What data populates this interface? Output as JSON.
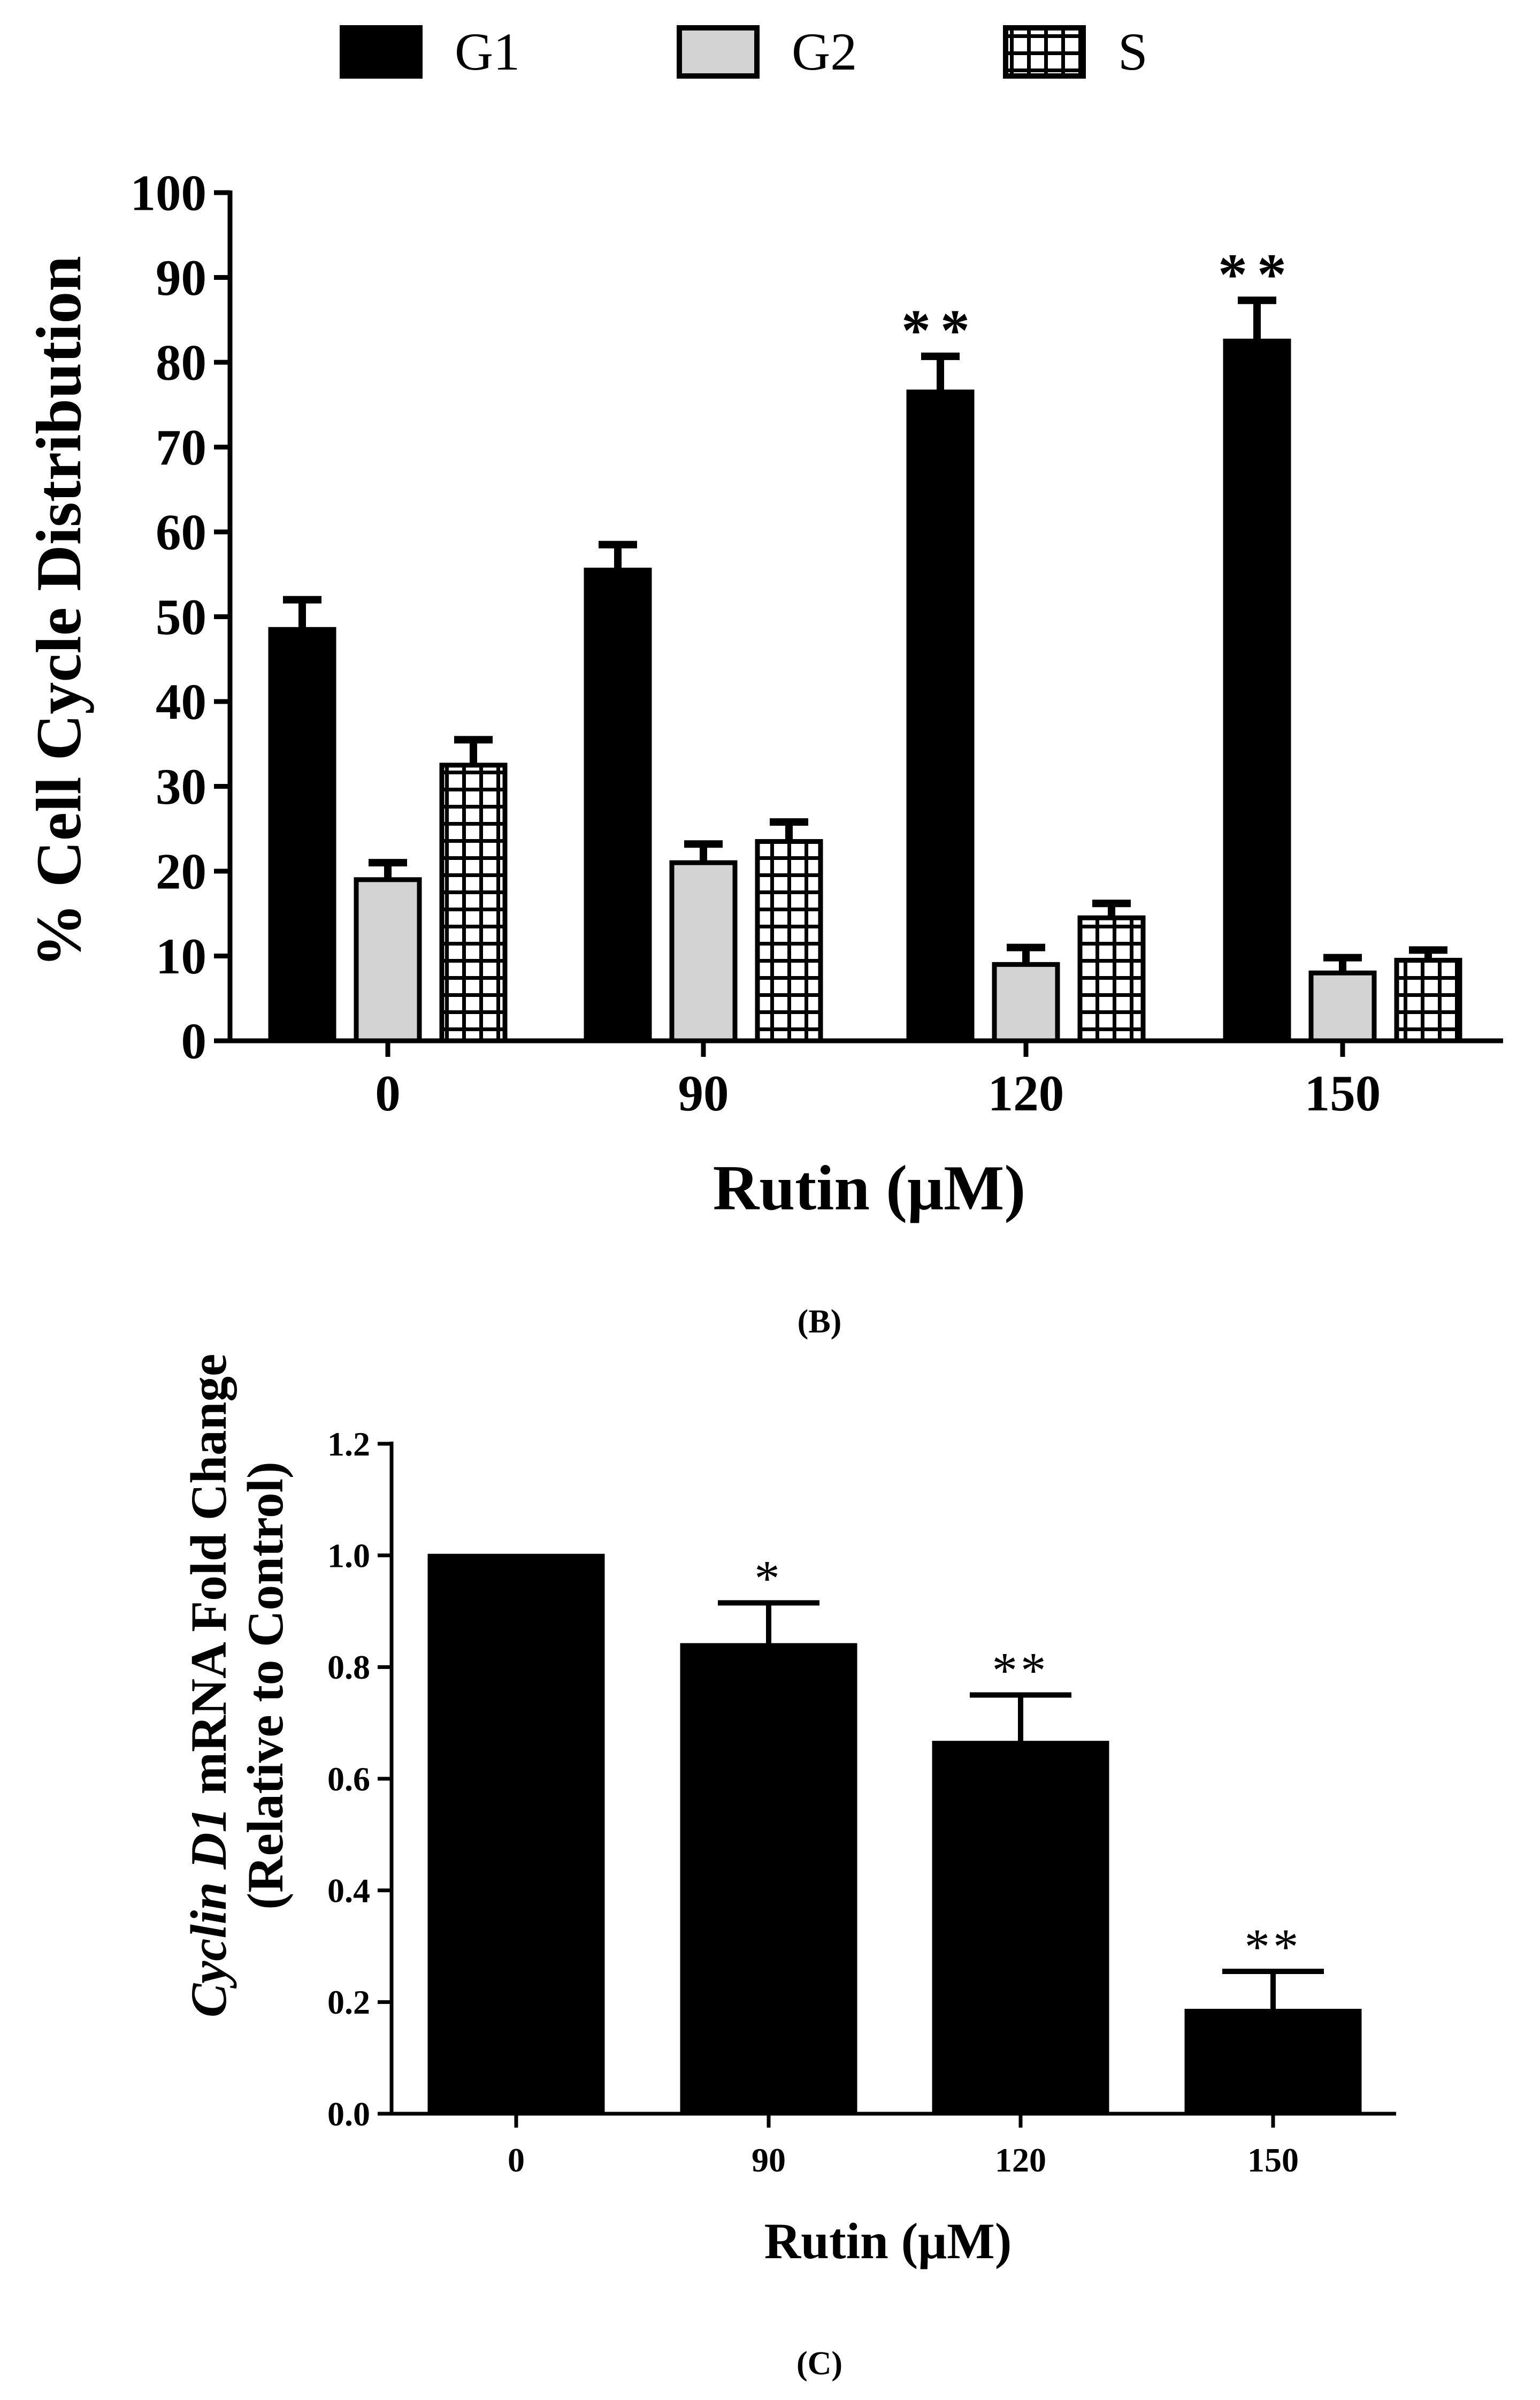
{
  "colors": {
    "g1": "#000000",
    "g2": "#d3d3d3",
    "s": "#ffffff",
    "stroke": "#000000"
  },
  "chart_data": [
    {
      "type": "bar",
      "panel": "(B)",
      "legend": {
        "placement": "top-center",
        "entries": [
          "G1",
          "G2",
          "S"
        ]
      },
      "categories": [
        "0",
        "90",
        "120",
        "150"
      ],
      "series": [
        {
          "name": "G1",
          "fill": "solid-black",
          "values": [
            48.5,
            55.5,
            76.5,
            82.5
          ],
          "errors": [
            3.5,
            3.0,
            4.2,
            4.8
          ]
        },
        {
          "name": "G2",
          "fill": "light-gray",
          "values": [
            19.0,
            21.0,
            9.0,
            8.0
          ],
          "errors": [
            2.0,
            2.2,
            2.0,
            1.8
          ]
        },
        {
          "name": "S",
          "fill": "white-grid-pattern",
          "values": [
            32.5,
            23.5,
            14.5,
            9.5
          ],
          "errors": [
            3.0,
            2.3,
            1.7,
            1.2
          ]
        }
      ],
      "annotations": [
        {
          "category": "120",
          "series": "G1",
          "text": "**"
        },
        {
          "category": "150",
          "series": "G1",
          "text": "**"
        }
      ],
      "ylabel": "% Cell Cycle Distribution",
      "xlabel": "Rutin (μM)",
      "ylim": [
        0,
        100
      ],
      "yticks": [
        "0",
        "10",
        "20",
        "30",
        "40",
        "50",
        "60",
        "70",
        "80",
        "90",
        "100"
      ]
    },
    {
      "type": "bar",
      "panel": "(C)",
      "categories": [
        "0",
        "90",
        "120",
        "150"
      ],
      "series": [
        {
          "name": "Cyclin D1",
          "fill": "solid-black",
          "values": [
            1.0,
            0.84,
            0.665,
            0.185
          ],
          "errors": [
            0.0,
            0.075,
            0.085,
            0.07
          ]
        }
      ],
      "annotations": [
        {
          "category": "90",
          "text": "*"
        },
        {
          "category": "120",
          "text": "**"
        },
        {
          "category": "150",
          "text": "**"
        }
      ],
      "ylabel_italic": "Cyclin D1",
      "ylabel_rest": " mRNA Fold Change",
      "ylabel_line2": "(Relative to Control)",
      "xlabel": "Rutin (μM)",
      "ylim": [
        0,
        1.2
      ],
      "yticks": [
        "0.0",
        "0.2",
        "0.4",
        "0.6",
        "0.8",
        "1.0",
        "1.2"
      ]
    }
  ]
}
